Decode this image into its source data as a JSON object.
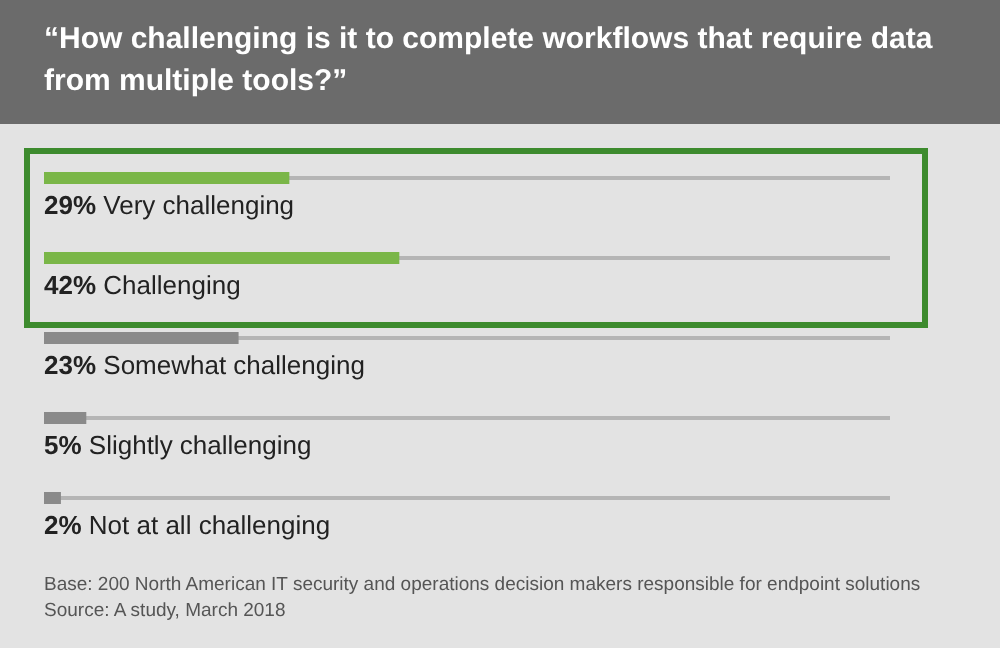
{
  "chart_data": {
    "type": "bar",
    "orientation": "horizontal",
    "title": "“How challenging is it to complete workflows that require data from multiple tools?”",
    "categories": [
      "Very challenging",
      "Challenging",
      "Somewhat challenging",
      "Slightly challenging",
      "Not at all challenging"
    ],
    "values": [
      29,
      42,
      23,
      5,
      2
    ],
    "colors": [
      "#7ab648",
      "#7ab648",
      "#8a8a8a",
      "#8a8a8a",
      "#8a8a8a"
    ],
    "value_labels": [
      "29%",
      "42%",
      "23%",
      "5%",
      "2%"
    ],
    "xlim": [
      0,
      100
    ],
    "annotations": [
      "Base: 200 North American IT security and operations decision makers responsible for endpoint solutions",
      "Source: A study, March 2018"
    ]
  }
}
